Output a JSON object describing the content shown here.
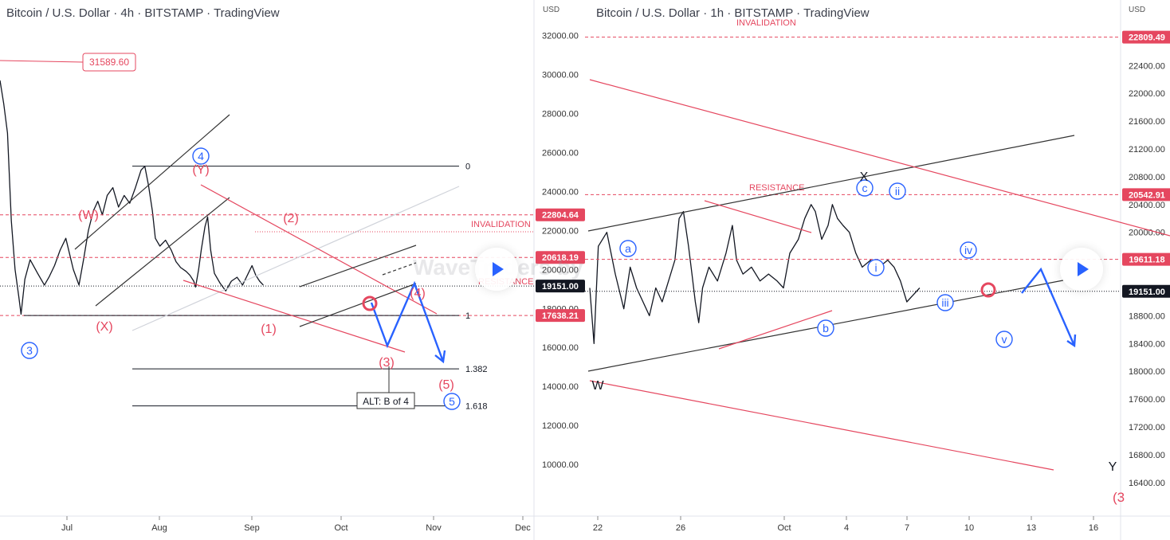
{
  "chart_data": [
    {
      "type": "line",
      "title": "Bitcoin / U.S. Dollar · 4h · BITSTAMP · TradingView",
      "currency_label": "USD",
      "y_ticks": [
        "32000.00",
        "30000.00",
        "28000.00",
        "26000.00",
        "24000.00",
        "22000.00",
        "20000.00",
        "18000.00",
        "16000.00",
        "14000.00",
        "12000.00",
        "10000.00"
      ],
      "x_ticks": [
        "Jul",
        "Aug",
        "Sep",
        "Oct",
        "Nov",
        "Dec"
      ],
      "ylim": [
        8000,
        33500
      ],
      "price_labels": [
        {
          "text": "22804.64",
          "value": 22804.64,
          "color": "#e5475f"
        },
        {
          "text": "20618.19",
          "value": 20618.19,
          "color": "#e5475f"
        },
        {
          "text": "19151.00",
          "value": 19151.0,
          "color": "#131722"
        },
        {
          "text": "17638.21",
          "value": 17638.21,
          "color": "#e5475f"
        }
      ],
      "price_box": "31589.60",
      "annotations": {
        "invalidation": "INVALIDATION",
        "resistance": "RESISTANCE",
        "watermark": "WaveTraders by ewforecast.com",
        "alt_box": "ALT: B of 4"
      },
      "fib_levels": [
        {
          "label": "0",
          "value": 25300
        },
        {
          "label": "1",
          "value": 17638.21
        },
        {
          "label": "1.382",
          "value": 14900
        },
        {
          "label": "1.618",
          "value": 13000
        }
      ],
      "wave_labels": [
        {
          "text": "(W)",
          "color": "#e5475f",
          "circled": false
        },
        {
          "text": "(X)",
          "color": "#e5475f",
          "circled": false
        },
        {
          "text": "(Y)",
          "color": "#e5475f",
          "circled": false
        },
        {
          "text": "4",
          "color": "#2962ff",
          "circled": true
        },
        {
          "text": "3",
          "color": "#2962ff",
          "circled": true
        },
        {
          "text": "(1)",
          "color": "#e5475f",
          "circled": false
        },
        {
          "text": "(2)",
          "color": "#e5475f",
          "circled": false
        },
        {
          "text": "(3)",
          "color": "#e5475f",
          "circled": false
        },
        {
          "text": "(4)",
          "color": "#e5475f",
          "circled": false
        },
        {
          "text": "(5)",
          "color": "#e5475f",
          "circled": false
        },
        {
          "text": "5",
          "color": "#2962ff",
          "circled": true
        }
      ],
      "price_series": [
        {
          "x": 0.0,
          "y": 29700
        },
        {
          "x": 0.01,
          "y": 28500
        },
        {
          "x": 0.02,
          "y": 27000
        },
        {
          "x": 0.03,
          "y": 22500
        },
        {
          "x": 0.04,
          "y": 20000
        },
        {
          "x": 0.05,
          "y": 18600
        },
        {
          "x": 0.056,
          "y": 17700
        },
        {
          "x": 0.066,
          "y": 19500
        },
        {
          "x": 0.08,
          "y": 20500
        },
        {
          "x": 0.1,
          "y": 19800
        },
        {
          "x": 0.118,
          "y": 19200
        },
        {
          "x": 0.13,
          "y": 19600
        },
        {
          "x": 0.145,
          "y": 20200
        },
        {
          "x": 0.16,
          "y": 21000
        },
        {
          "x": 0.175,
          "y": 21600
        },
        {
          "x": 0.185,
          "y": 20800
        },
        {
          "x": 0.195,
          "y": 20000
        },
        {
          "x": 0.21,
          "y": 19200
        },
        {
          "x": 0.222,
          "y": 20500
        },
        {
          "x": 0.235,
          "y": 22000
        },
        {
          "x": 0.248,
          "y": 23000
        },
        {
          "x": 0.26,
          "y": 23500
        },
        {
          "x": 0.272,
          "y": 22800
        },
        {
          "x": 0.285,
          "y": 23800
        },
        {
          "x": 0.3,
          "y": 24200
        },
        {
          "x": 0.315,
          "y": 23200
        },
        {
          "x": 0.33,
          "y": 23800
        },
        {
          "x": 0.345,
          "y": 23400
        },
        {
          "x": 0.36,
          "y": 24200
        },
        {
          "x": 0.375,
          "y": 25100
        },
        {
          "x": 0.385,
          "y": 25300
        },
        {
          "x": 0.395,
          "y": 24300
        },
        {
          "x": 0.405,
          "y": 23000
        },
        {
          "x": 0.413,
          "y": 21600
        },
        {
          "x": 0.425,
          "y": 21200
        },
        {
          "x": 0.44,
          "y": 21500
        },
        {
          "x": 0.455,
          "y": 21000
        },
        {
          "x": 0.468,
          "y": 20400
        },
        {
          "x": 0.48,
          "y": 20100
        },
        {
          "x": 0.495,
          "y": 19900
        },
        {
          "x": 0.505,
          "y": 19700
        },
        {
          "x": 0.515,
          "y": 19400
        },
        {
          "x": 0.52,
          "y": 19100
        },
        {
          "x": 0.528,
          "y": 20000
        },
        {
          "x": 0.535,
          "y": 21000
        },
        {
          "x": 0.545,
          "y": 22200
        },
        {
          "x": 0.552,
          "y": 22700
        },
        {
          "x": 0.56,
          "y": 21000
        },
        {
          "x": 0.57,
          "y": 19800
        },
        {
          "x": 0.585,
          "y": 19300
        },
        {
          "x": 0.6,
          "y": 18900
        },
        {
          "x": 0.615,
          "y": 19400
        },
        {
          "x": 0.63,
          "y": 19600
        },
        {
          "x": 0.645,
          "y": 19200
        },
        {
          "x": 0.66,
          "y": 19800
        },
        {
          "x": 0.67,
          "y": 20200
        },
        {
          "x": 0.68,
          "y": 19700
        },
        {
          "x": 0.69,
          "y": 19400
        },
        {
          "x": 0.7,
          "y": 19200
        }
      ]
    },
    {
      "type": "line",
      "title": "Bitcoin / U.S. Dollar · 1h · BITSTAMP · TradingView",
      "currency_label": "USD",
      "y_ticks": [
        "22400.00",
        "22000.00",
        "21600.00",
        "21200.00",
        "20800.00",
        "20400.00",
        "20000.00",
        "19600.00",
        "18800.00",
        "18400.00",
        "18000.00",
        "17600.00",
        "17200.00",
        "16800.00",
        "16400.00"
      ],
      "x_ticks": [
        "22",
        "26",
        "Oct",
        "4",
        "7",
        "10",
        "13",
        "16"
      ],
      "ylim": [
        16100,
        23000
      ],
      "price_labels": [
        {
          "text": "22809.49",
          "value": 22809.49,
          "color": "#e5475f"
        },
        {
          "text": "20542.91",
          "value": 20542.91,
          "color": "#e5475f"
        },
        {
          "text": "19611.18",
          "value": 19611.18,
          "color": "#e5475f"
        },
        {
          "text": "19151.00",
          "value": 19151.0,
          "color": "#131722"
        }
      ],
      "annotations": {
        "invalidation": "INVALIDATION",
        "resistance": "RESISTANCE",
        "corner_label": "(3"
      },
      "wave_labels": [
        {
          "text": "a",
          "color": "#2962ff",
          "circled": true
        },
        {
          "text": "b",
          "color": "#2962ff",
          "circled": true
        },
        {
          "text": "c",
          "color": "#2962ff",
          "circled": true
        },
        {
          "text": "i",
          "color": "#2962ff",
          "circled": true
        },
        {
          "text": "ii",
          "color": "#2962ff",
          "circled": true
        },
        {
          "text": "iii",
          "color": "#2962ff",
          "circled": true
        },
        {
          "text": "iv",
          "color": "#2962ff",
          "circled": true
        },
        {
          "text": "v",
          "color": "#2962ff",
          "circled": true
        },
        {
          "text": "W",
          "color": "#131722",
          "circled": false
        },
        {
          "text": "X",
          "color": "#131722",
          "circled": false
        },
        {
          "text": "Y",
          "color": "#131722",
          "circled": false
        }
      ],
      "price_series": [
        {
          "x": 0.0,
          "y": 19200
        },
        {
          "x": 0.01,
          "y": 18400
        },
        {
          "x": 0.02,
          "y": 19800
        },
        {
          "x": 0.04,
          "y": 20000
        },
        {
          "x": 0.06,
          "y": 19400
        },
        {
          "x": 0.08,
          "y": 18900
        },
        {
          "x": 0.095,
          "y": 19500
        },
        {
          "x": 0.11,
          "y": 19200
        },
        {
          "x": 0.125,
          "y": 19000
        },
        {
          "x": 0.14,
          "y": 18800
        },
        {
          "x": 0.155,
          "y": 19200
        },
        {
          "x": 0.17,
          "y": 19000
        },
        {
          "x": 0.185,
          "y": 19300
        },
        {
          "x": 0.2,
          "y": 19600
        },
        {
          "x": 0.21,
          "y": 20200
        },
        {
          "x": 0.22,
          "y": 20300
        },
        {
          "x": 0.232,
          "y": 19800
        },
        {
          "x": 0.24,
          "y": 19400
        },
        {
          "x": 0.248,
          "y": 19000
        },
        {
          "x": 0.256,
          "y": 18700
        },
        {
          "x": 0.265,
          "y": 19200
        },
        {
          "x": 0.28,
          "y": 19500
        },
        {
          "x": 0.3,
          "y": 19300
        },
        {
          "x": 0.32,
          "y": 19700
        },
        {
          "x": 0.335,
          "y": 20100
        },
        {
          "x": 0.345,
          "y": 19600
        },
        {
          "x": 0.36,
          "y": 19400
        },
        {
          "x": 0.38,
          "y": 19500
        },
        {
          "x": 0.4,
          "y": 19300
        },
        {
          "x": 0.42,
          "y": 19400
        },
        {
          "x": 0.44,
          "y": 19300
        },
        {
          "x": 0.455,
          "y": 19200
        },
        {
          "x": 0.47,
          "y": 19700
        },
        {
          "x": 0.49,
          "y": 19900
        },
        {
          "x": 0.505,
          "y": 20200
        },
        {
          "x": 0.52,
          "y": 20400
        },
        {
          "x": 0.53,
          "y": 20300
        },
        {
          "x": 0.545,
          "y": 19900
        },
        {
          "x": 0.56,
          "y": 20100
        },
        {
          "x": 0.57,
          "y": 20400
        },
        {
          "x": 0.582,
          "y": 20200
        },
        {
          "x": 0.595,
          "y": 20100
        },
        {
          "x": 0.61,
          "y": 20000
        },
        {
          "x": 0.625,
          "y": 19700
        },
        {
          "x": 0.64,
          "y": 19500
        },
        {
          "x": 0.66,
          "y": 19600
        },
        {
          "x": 0.68,
          "y": 19500
        },
        {
          "x": 0.7,
          "y": 19600
        },
        {
          "x": 0.715,
          "y": 19500
        },
        {
          "x": 0.73,
          "y": 19300
        },
        {
          "x": 0.745,
          "y": 19000
        },
        {
          "x": 0.76,
          "y": 19100
        },
        {
          "x": 0.775,
          "y": 19200
        }
      ]
    }
  ]
}
